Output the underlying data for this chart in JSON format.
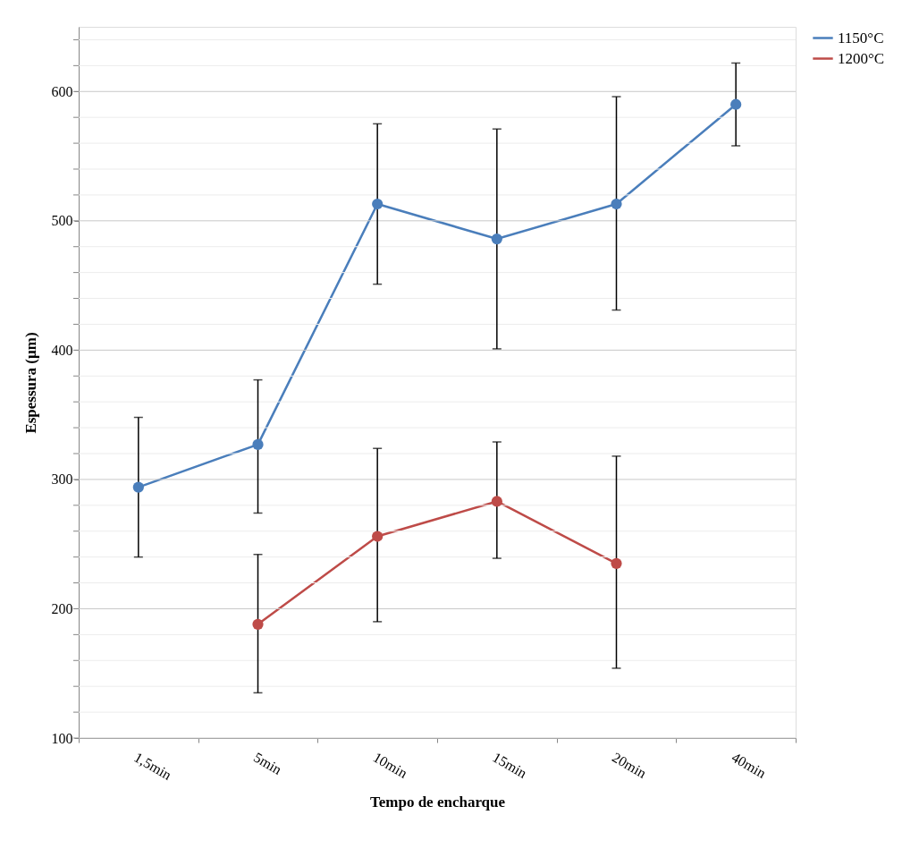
{
  "chart_data": {
    "type": "line",
    "xlabel": "Tempo de encharque",
    "ylabel": "Espessura (µm)",
    "categories": [
      "1,5min",
      "5min",
      "10min",
      "15min",
      "20min",
      "40min"
    ],
    "series": [
      {
        "name": "1150°C",
        "color": "#4a7ebb",
        "values": [
          294,
          327,
          513,
          486,
          513,
          590
        ],
        "errors": [
          [
            240,
            348
          ],
          [
            274,
            377
          ],
          [
            451,
            575
          ],
          [
            401,
            571
          ],
          [
            431,
            596
          ],
          [
            558,
            622
          ]
        ]
      },
      {
        "name": "1200°C",
        "color": "#be4b48",
        "values": [
          null,
          188,
          256,
          283,
          235,
          null
        ],
        "errors": [
          null,
          [
            135,
            242
          ],
          [
            190,
            324
          ],
          [
            239,
            329
          ],
          [
            154,
            318
          ],
          null
        ]
      }
    ],
    "ylim": [
      100,
      650
    ],
    "yticks": [
      100,
      {
        "value": 120,
        "label": null
      },
      {
        "value": 140,
        "label": null
      },
      {
        "value": 160,
        "label": null
      },
      {
        "value": 180,
        "label": null
      },
      200,
      {
        "value": 220,
        "label": null
      },
      {
        "value": 240,
        "label": null
      },
      {
        "value": 260,
        "label": null
      },
      {
        "value": 280,
        "label": null
      },
      300,
      {
        "value": 320,
        "label": null
      },
      {
        "value": 340,
        "label": null
      },
      {
        "value": 360,
        "label": null
      },
      {
        "value": 380,
        "label": null
      },
      400,
      {
        "value": 420,
        "label": null
      },
      {
        "value": 440,
        "label": null
      },
      {
        "value": 460,
        "label": null
      },
      {
        "value": 480,
        "label": null
      },
      500,
      {
        "value": 520,
        "label": null
      },
      {
        "value": 540,
        "label": null
      },
      {
        "value": 560,
        "label": null
      },
      {
        "value": 580,
        "label": null
      },
      600,
      {
        "value": 620,
        "label": null
      },
      {
        "value": 640,
        "label": null
      }
    ],
    "grid": "y",
    "legend": "right",
    "marker": "circle",
    "line_style": "solid"
  }
}
